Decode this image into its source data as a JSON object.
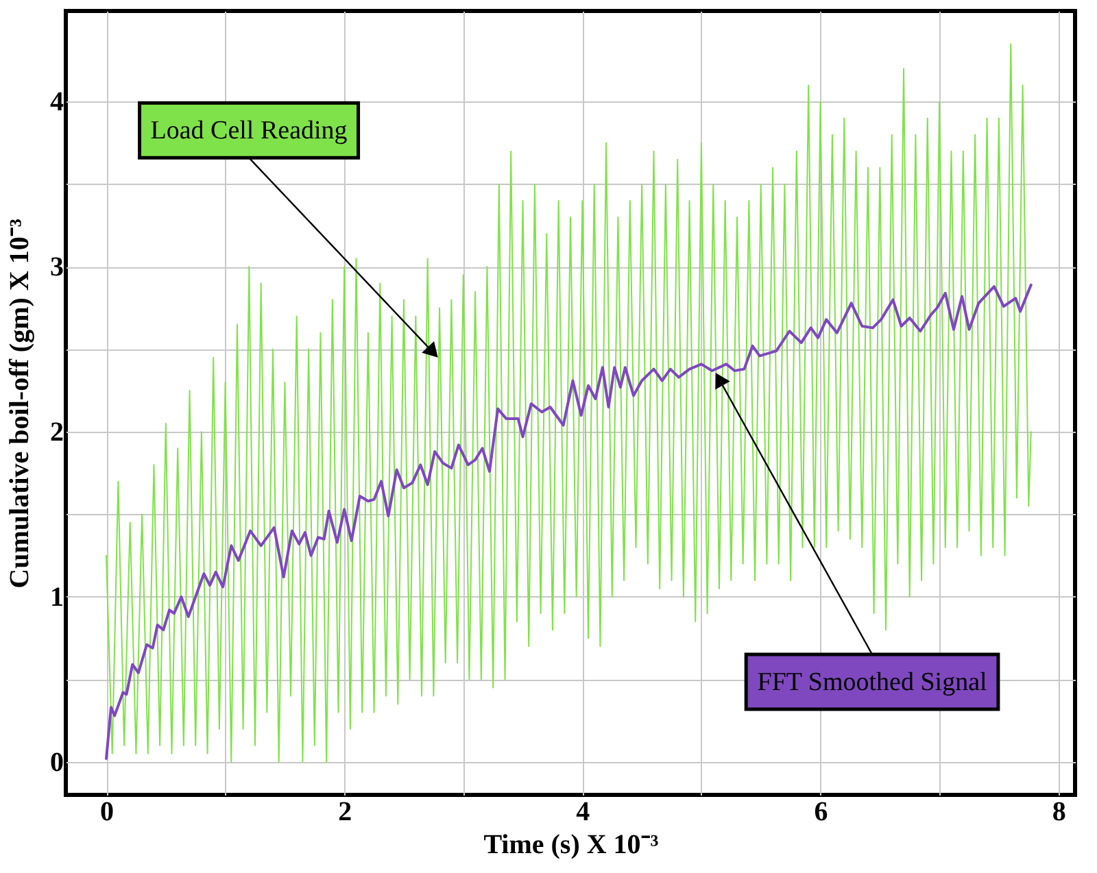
{
  "chart_data": {
    "type": "line",
    "xlabel": "Time (s) X 10⁻³",
    "ylabel": "Cumulative boil-off (gm) X 10⁻³",
    "xlim": [
      -0.34,
      8.14
    ],
    "ylim": [
      -0.2,
      4.55
    ],
    "xticks": [
      0,
      {
        "value": 1,
        "label": null
      },
      2,
      {
        "value": 3,
        "label": null
      },
      4,
      {
        "value": 5,
        "label": null
      },
      6,
      {
        "value": 7,
        "label": null
      },
      8
    ],
    "yticks": [
      0,
      {
        "value": 0.5,
        "label": null
      },
      1,
      {
        "value": 1.5,
        "label": null
      },
      2,
      {
        "value": 2.5,
        "label": null
      },
      3,
      {
        "value": 3.5,
        "label": null
      },
      4
    ],
    "grid": true,
    "line_style": "solid",
    "marker": "none",
    "annotations": [
      {
        "text": "Load Cell Reading",
        "x": 2.8,
        "y": 2.44
      },
      {
        "text": "FFT Smoothed Signal",
        "x": 5.11,
        "y": 2.37
      }
    ],
    "series": [
      {
        "color": "#80e24a",
        "x": [
          0.0,
          0.05,
          0.1,
          0.15,
          0.2,
          0.25,
          0.3,
          0.35,
          0.4,
          0.45,
          0.5,
          0.55,
          0.6,
          0.65,
          0.7,
          0.75,
          0.8,
          0.85,
          0.9,
          0.95,
          1.0,
          1.05,
          1.1,
          1.15,
          1.2,
          1.25,
          1.3,
          1.35,
          1.4,
          1.45,
          1.5,
          1.55,
          1.6,
          1.65,
          1.7,
          1.75,
          1.8,
          1.85,
          1.9,
          1.95,
          2.0,
          2.05,
          2.1,
          2.15,
          2.2,
          2.25,
          2.3,
          2.35,
          2.4,
          2.45,
          2.5,
          2.55,
          2.6,
          2.65,
          2.7,
          2.75,
          2.8,
          2.85,
          2.9,
          2.95,
          3.0,
          3.05,
          3.1,
          3.15,
          3.2,
          3.25,
          3.3,
          3.35,
          3.4,
          3.45,
          3.5,
          3.55,
          3.6,
          3.65,
          3.7,
          3.75,
          3.8,
          3.85,
          3.9,
          3.95,
          4.0,
          4.05,
          4.1,
          4.15,
          4.2,
          4.25,
          4.3,
          4.35,
          4.4,
          4.45,
          4.5,
          4.55,
          4.6,
          4.65,
          4.7,
          4.75,
          4.8,
          4.85,
          4.9,
          4.95,
          5.0,
          5.05,
          5.1,
          5.15,
          5.2,
          5.25,
          5.3,
          5.35,
          5.4,
          5.45,
          5.5,
          5.55,
          5.6,
          5.65,
          5.7,
          5.75,
          5.8,
          5.85,
          5.9,
          5.95,
          6.0,
          6.05,
          6.1,
          6.15,
          6.2,
          6.25,
          6.3,
          6.35,
          6.4,
          6.45,
          6.5,
          6.55,
          6.6,
          6.65,
          6.7,
          6.75,
          6.8,
          6.85,
          6.9,
          6.95,
          7.0,
          7.05,
          7.1,
          7.15,
          7.2,
          7.25,
          7.3,
          7.35,
          7.4,
          7.45,
          7.5,
          7.55,
          7.6,
          7.65,
          7.7,
          7.75,
          7.77
        ],
        "values": [
          1.25,
          0.05,
          1.7,
          0.1,
          1.45,
          0.05,
          1.5,
          0.05,
          1.8,
          0.1,
          2.05,
          0.05,
          1.9,
          0.1,
          2.25,
          0.1,
          2.0,
          0.05,
          2.45,
          0.2,
          2.3,
          0.0,
          2.65,
          0.2,
          3.0,
          0.1,
          2.9,
          0.3,
          2.5,
          0.0,
          2.3,
          0.4,
          2.7,
          0.0,
          2.5,
          0.1,
          2.6,
          0.0,
          2.8,
          0.3,
          3.0,
          0.2,
          3.05,
          0.3,
          2.6,
          0.3,
          2.9,
          0.4,
          2.7,
          0.35,
          2.8,
          0.5,
          2.7,
          0.4,
          3.05,
          0.4,
          2.75,
          0.6,
          2.8,
          0.6,
          2.95,
          0.5,
          2.85,
          0.5,
          3.0,
          0.45,
          3.5,
          0.5,
          3.7,
          0.85,
          3.4,
          0.7,
          3.5,
          0.9,
          3.2,
          0.8,
          3.4,
          0.9,
          3.3,
          1.0,
          3.4,
          0.75,
          3.5,
          0.7,
          3.75,
          1.0,
          3.3,
          1.1,
          3.4,
          1.3,
          3.5,
          1.2,
          3.7,
          1.05,
          3.5,
          1.1,
          3.65,
          1.0,
          3.4,
          0.85,
          3.75,
          0.9,
          3.5,
          1.05,
          3.4,
          1.1,
          3.3,
          1.2,
          3.4,
          1.1,
          3.5,
          1.2,
          3.6,
          1.2,
          3.5,
          1.1,
          3.7,
          1.3,
          4.1,
          1.3,
          4.0,
          1.3,
          3.8,
          1.4,
          3.9,
          1.35,
          3.7,
          1.3,
          3.6,
          0.9,
          3.6,
          0.8,
          3.8,
          1.2,
          4.2,
          1.0,
          3.8,
          1.1,
          3.9,
          1.2,
          4.0,
          1.3,
          3.7,
          1.3,
          3.7,
          1.4,
          3.8,
          1.25,
          3.9,
          1.3,
          3.9,
          1.25,
          4.35,
          1.6,
          4.1,
          1.55,
          2.0
        ]
      },
      {
        "color": "#7f48bf",
        "x": [
          0,
          0.04,
          0.07,
          0.14,
          0.17,
          0.22,
          0.27,
          0.34,
          0.39,
          0.43,
          0.48,
          0.53,
          0.57,
          0.63,
          0.69,
          0.82,
          0.87,
          0.92,
          0.98,
          1.05,
          1.11,
          1.21,
          1.3,
          1.41,
          1.49,
          1.56,
          1.62,
          1.67,
          1.72,
          1.78,
          1.83,
          1.87,
          1.94,
          2.0,
          2.06,
          2.13,
          2.2,
          2.25,
          2.31,
          2.37,
          2.44,
          2.5,
          2.57,
          2.64,
          2.7,
          2.76,
          2.83,
          2.9,
          2.96,
          3.04,
          3.1,
          3.16,
          3.22,
          3.29,
          3.36,
          3.46,
          3.5,
          3.57,
          3.66,
          3.73,
          3.84,
          3.92,
          3.99,
          4.05,
          4.11,
          4.17,
          4.22,
          4.27,
          4.32,
          4.36,
          4.43,
          4.5,
          4.6,
          4.67,
          4.74,
          4.81,
          4.9,
          5.0,
          5.09,
          5.21,
          5.28,
          5.36,
          5.43,
          5.49,
          5.63,
          5.74,
          5.84,
          5.92,
          5.98,
          6.05,
          6.14,
          6.26,
          6.35,
          6.44,
          6.51,
          6.61,
          6.68,
          6.75,
          6.84,
          6.93,
          6.98,
          7.05,
          7.12,
          7.19,
          7.25,
          7.33,
          7.46,
          7.54,
          7.64,
          7.68,
          7.77
        ],
        "values": [
          0.02,
          0.33,
          0.28,
          0.42,
          0.41,
          0.59,
          0.54,
          0.71,
          0.69,
          0.83,
          0.8,
          0.92,
          0.9,
          1.0,
          0.88,
          1.14,
          1.07,
          1.15,
          1.06,
          1.31,
          1.22,
          1.4,
          1.31,
          1.42,
          1.12,
          1.4,
          1.32,
          1.39,
          1.25,
          1.36,
          1.35,
          1.52,
          1.33,
          1.53,
          1.34,
          1.61,
          1.58,
          1.59,
          1.7,
          1.49,
          1.77,
          1.66,
          1.69,
          1.8,
          1.68,
          1.88,
          1.81,
          1.78,
          1.92,
          1.8,
          1.83,
          1.9,
          1.76,
          2.14,
          2.08,
          2.08,
          1.97,
          2.17,
          2.12,
          2.15,
          2.04,
          2.31,
          2.1,
          2.28,
          2.2,
          2.39,
          2.15,
          2.39,
          2.27,
          2.39,
          2.22,
          2.31,
          2.38,
          2.31,
          2.38,
          2.33,
          2.38,
          2.41,
          2.37,
          2.41,
          2.37,
          2.38,
          2.52,
          2.46,
          2.49,
          2.61,
          2.54,
          2.63,
          2.57,
          2.68,
          2.6,
          2.78,
          2.64,
          2.63,
          2.68,
          2.8,
          2.64,
          2.69,
          2.61,
          2.71,
          2.75,
          2.84,
          2.62,
          2.82,
          2.62,
          2.78,
          2.88,
          2.76,
          2.81,
          2.73,
          2.89
        ]
      }
    ]
  }
}
